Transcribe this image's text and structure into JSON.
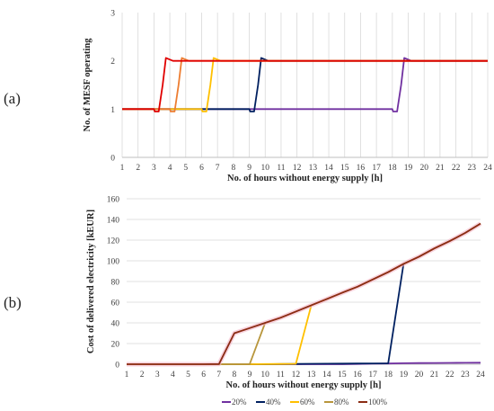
{
  "panel_labels": {
    "a": "(a)",
    "b": "(b)"
  },
  "chart_data": [
    {
      "type": "line",
      "panel": "(a)",
      "title": "",
      "xlabel": "No. of hours without energy supply [h]",
      "ylabel": "No. of MESF operating",
      "x": [
        1,
        2,
        3,
        4,
        5,
        6,
        7,
        8,
        9,
        10,
        11,
        12,
        13,
        14,
        15,
        16,
        17,
        18,
        19,
        20,
        21,
        22,
        23,
        24
      ],
      "xlim": [
        1,
        24
      ],
      "ylim": [
        0,
        3
      ],
      "yticks": [
        0,
        1,
        2,
        3
      ],
      "grid": "vertical",
      "series": [
        {
          "color": "#7030a0",
          "values": [
            1,
            1,
            1,
            1,
            1,
            1,
            1,
            1,
            1,
            1,
            1,
            1,
            1,
            1,
            1,
            1,
            1,
            1,
            2,
            2,
            2,
            2,
            2,
            2
          ]
        },
        {
          "color": "#002060",
          "values": [
            1,
            1,
            1,
            1,
            1,
            1,
            1,
            1,
            1,
            2,
            2,
            2,
            2,
            2,
            2,
            2,
            2,
            2,
            2,
            2,
            2,
            2,
            2,
            2
          ]
        },
        {
          "color": "#ffc000",
          "values": [
            1,
            1,
            1,
            1,
            1,
            1,
            2,
            2,
            2,
            2,
            2,
            2,
            2,
            2,
            2,
            2,
            2,
            2,
            2,
            2,
            2,
            2,
            2,
            2
          ]
        },
        {
          "color": "#ed7d31",
          "values": [
            1,
            1,
            1,
            1,
            2,
            2,
            2,
            2,
            2,
            2,
            2,
            2,
            2,
            2,
            2,
            2,
            2,
            2,
            2,
            2,
            2,
            2,
            2,
            2
          ]
        },
        {
          "color": "#e00000",
          "values": [
            1,
            1,
            1,
            2,
            2,
            2,
            2,
            2,
            2,
            2,
            2,
            2,
            2,
            2,
            2,
            2,
            2,
            2,
            2,
            2,
            2,
            2,
            2,
            2
          ]
        }
      ]
    },
    {
      "type": "line",
      "panel": "(b)",
      "title": "",
      "xlabel": "No. of hours without energy supply [h]",
      "ylabel": "Cost of delivered electricity [kEUR]",
      "x": [
        1,
        2,
        3,
        4,
        5,
        6,
        7,
        8,
        9,
        10,
        11,
        12,
        13,
        14,
        15,
        16,
        17,
        18,
        19,
        20,
        21,
        22,
        23,
        24
      ],
      "xlim": [
        1,
        24
      ],
      "ylim": [
        0,
        160
      ],
      "yticks": [
        0,
        20,
        40,
        60,
        80,
        100,
        120,
        140,
        160
      ],
      "grid": "horizontal",
      "legend_position": "bottom",
      "series": [
        {
          "name": "20%",
          "color": "#7030a0",
          "values": [
            0,
            0,
            0,
            0,
            0,
            0,
            0,
            0,
            0,
            0,
            0,
            0,
            0,
            0,
            0,
            0.3,
            0.5,
            0.7,
            1,
            1.1,
            1.2,
            1.3,
            1.4,
            1.5
          ]
        },
        {
          "name": "40%",
          "color": "#002060",
          "values": [
            0,
            0,
            0,
            0,
            0,
            0,
            0,
            0,
            0,
            0,
            0.2,
            0.3,
            0.4,
            0.5,
            0.6,
            0.7,
            0.8,
            0.9,
            97,
            104,
            112,
            119,
            127,
            136
          ]
        },
        {
          "name": "60%",
          "color": "#ffc000",
          "values": [
            0,
            0,
            0,
            0,
            0,
            0,
            0,
            0,
            0,
            0.2,
            0.3,
            0.4,
            57,
            63,
            69,
            75,
            82,
            89,
            97,
            104,
            112,
            119,
            127,
            136
          ]
        },
        {
          "name": "80%",
          "color": "#b8963c",
          "values": [
            0,
            0,
            0,
            0,
            0,
            0,
            0,
            0,
            0.2,
            40,
            45,
            51,
            57,
            63,
            69,
            75,
            82,
            89,
            97,
            104,
            112,
            119,
            127,
            136
          ]
        },
        {
          "name": "100%",
          "color": "#8b2c14",
          "values": [
            0,
            0,
            0,
            0,
            0,
            0,
            0.2,
            30,
            35,
            40,
            45,
            51,
            57,
            63,
            69,
            75,
            82,
            89,
            97,
            104,
            112,
            119,
            127,
            136
          ]
        }
      ]
    }
  ]
}
